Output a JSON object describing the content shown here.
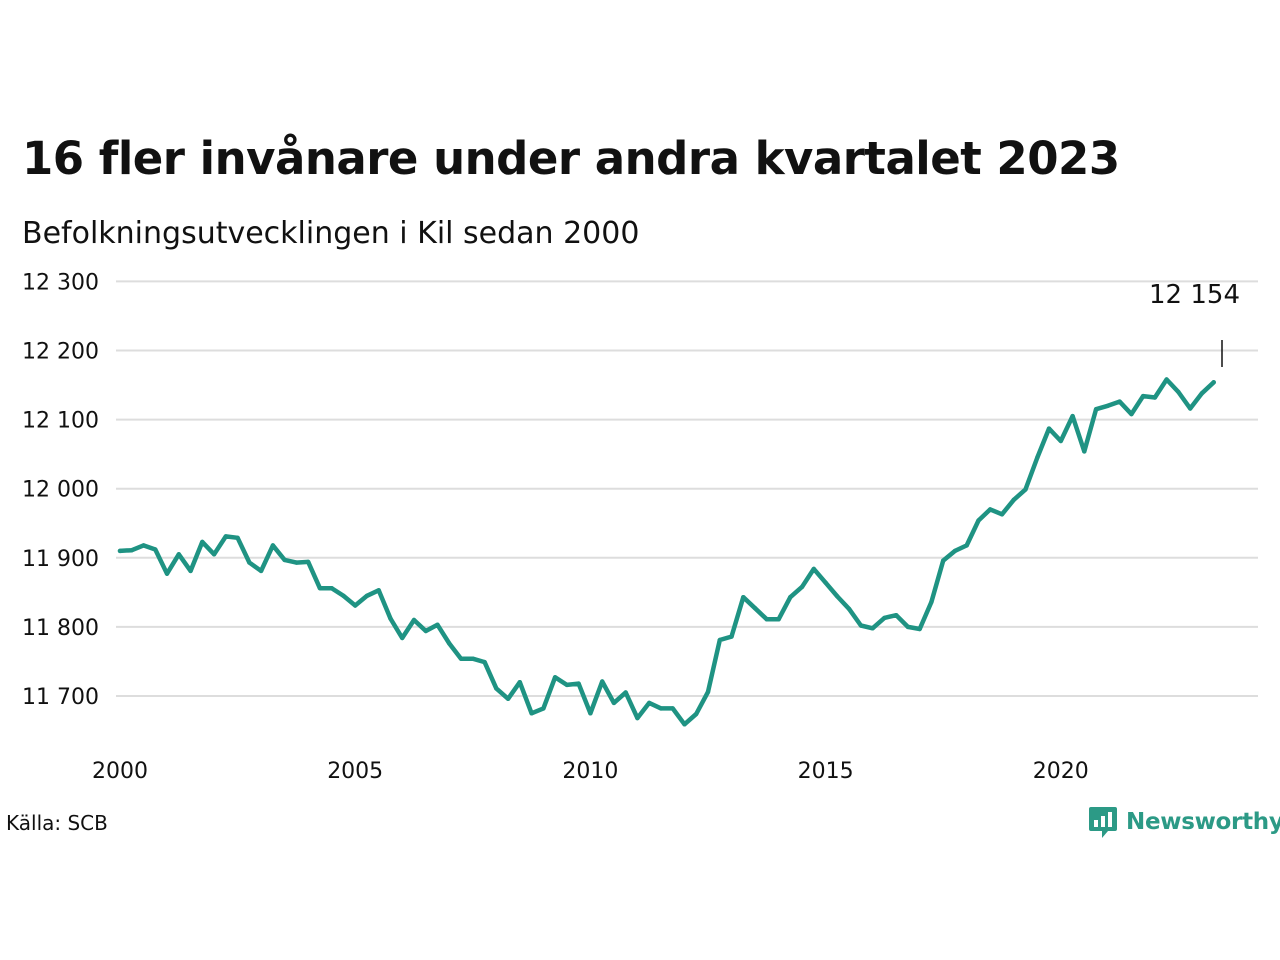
{
  "title": "16 fler invånare under andra kvartalet 2023",
  "subtitle": "Befolkningsutvecklingen i Kil sedan 2000",
  "source": "Källa: SCB",
  "brand": {
    "name": "Newsworthy",
    "icon": "newsworthy-logo-icon",
    "color": "#2c9a86"
  },
  "colors": {
    "line": "#1f9383",
    "grid": "#dddddd",
    "text": "#111111"
  },
  "chart_data": {
    "type": "line",
    "title": "16 fler invånare under andra kvartalet 2023",
    "subtitle": "Befolkningsutvecklingen i Kil sedan 2000",
    "xlabel": "",
    "ylabel": "",
    "x_ticks": [
      2000,
      2005,
      2010,
      2015,
      2020
    ],
    "x_tick_labels": [
      "2000",
      "2005",
      "2010",
      "2015",
      "2020"
    ],
    "y_ticks": [
      11700,
      11800,
      11900,
      12000,
      12100,
      12200,
      12300
    ],
    "y_tick_labels": [
      "11 700",
      "11 800",
      "11 900",
      "12 000",
      "12 100",
      "12 200",
      "12 300"
    ],
    "ylim": [
      11650,
      12300
    ],
    "xlim": [
      2000,
      2024
    ],
    "grid": true,
    "legend": "none",
    "annotation": {
      "label": "12 154"
    },
    "series": [
      {
        "x": [
          "2000-Q1",
          "2000-Q2",
          "2000-Q3",
          "2000-Q4",
          "2001-Q1",
          "2001-Q2",
          "2001-Q3",
          "2001-Q4",
          "2002-Q1",
          "2002-Q2",
          "2002-Q3",
          "2002-Q4",
          "2003-Q1",
          "2003-Q2",
          "2003-Q3",
          "2003-Q4",
          "2004-Q1",
          "2004-Q2",
          "2004-Q3",
          "2004-Q4",
          "2005-Q1",
          "2005-Q2",
          "2005-Q3",
          "2005-Q4",
          "2006-Q1",
          "2006-Q2",
          "2006-Q3",
          "2006-Q4",
          "2007-Q1",
          "2007-Q2",
          "2007-Q3",
          "2007-Q4",
          "2008-Q1",
          "2008-Q2",
          "2008-Q3",
          "2008-Q4",
          "2009-Q1",
          "2009-Q2",
          "2009-Q3",
          "2009-Q4",
          "2010-Q1",
          "2010-Q2",
          "2010-Q3",
          "2010-Q4",
          "2011-Q1",
          "2011-Q2",
          "2011-Q3",
          "2011-Q4",
          "2012-Q1",
          "2012-Q2",
          "2012-Q3",
          "2012-Q4",
          "2013-Q1",
          "2013-Q2",
          "2013-Q3",
          "2013-Q4",
          "2014-Q1",
          "2014-Q2",
          "2014-Q3",
          "2014-Q4",
          "2015-Q1",
          "2015-Q2",
          "2015-Q3",
          "2015-Q4",
          "2016-Q1",
          "2016-Q2",
          "2016-Q3",
          "2016-Q4",
          "2017-Q1",
          "2017-Q2",
          "2017-Q3",
          "2017-Q4",
          "2018-Q1",
          "2018-Q2",
          "2018-Q3",
          "2018-Q4",
          "2019-Q1",
          "2019-Q2",
          "2019-Q3",
          "2019-Q4",
          "2020-Q1",
          "2020-Q2",
          "2020-Q3",
          "2020-Q4",
          "2021-Q1",
          "2021-Q2",
          "2021-Q3",
          "2021-Q4",
          "2022-Q1",
          "2022-Q2",
          "2022-Q3",
          "2022-Q4",
          "2023-Q1",
          "2023-Q2"
        ],
        "values": [
          11910,
          11911,
          11918,
          11912,
          11877,
          11905,
          11881,
          11923,
          11905,
          11931,
          11929,
          11893,
          11881,
          11918,
          11897,
          11893,
          11894,
          11856,
          11856,
          11845,
          11831,
          11845,
          11853,
          11812,
          11784,
          11810,
          11794,
          11803,
          11776,
          11754,
          11754,
          11749,
          11711,
          11696,
          11720,
          11675,
          11682,
          11727,
          11716,
          11718,
          11675,
          11721,
          11690,
          11705,
          11668,
          11690,
          11682,
          11682,
          11659,
          11674,
          11706,
          11781,
          11786,
          11843,
          11827,
          11811,
          11811,
          11843,
          11858,
          11884,
          11864,
          11844,
          11826,
          11802,
          11798,
          11813,
          11817,
          11800,
          11797,
          11836,
          11896,
          11910,
          11918,
          11954,
          11970,
          11963,
          11984,
          11999,
          12045,
          12087,
          12069,
          12105,
          12054,
          12115,
          12120,
          12126,
          12108,
          12134,
          12132,
          12158,
          12140,
          12116,
          12138,
          12154
        ]
      }
    ]
  }
}
